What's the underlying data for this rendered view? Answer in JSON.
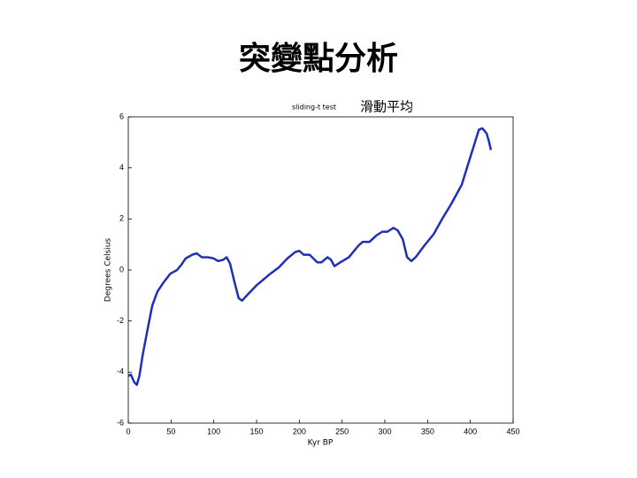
{
  "chart_data": {
    "type": "line",
    "title": "突變點分析",
    "subtitle": "sliding-t test",
    "annotation": "滑動平均",
    "x_label": "Kyr BP",
    "y_label": "Degrees Celsius",
    "xlim": [
      0,
      450
    ],
    "xticks": [
      0,
      50,
      100,
      150,
      200,
      250,
      300,
      350,
      400,
      450
    ],
    "ylim": [
      -6,
      6
    ],
    "yticks": [
      -6,
      -4,
      -2,
      0,
      2,
      4,
      6
    ],
    "grid": false,
    "series": [
      {
        "color": "#1f2fb8",
        "x": [
          0,
          3,
          7,
          10,
          13,
          17,
          23,
          28,
          34,
          41,
          49,
          57,
          62,
          67,
          75,
          80,
          86,
          93,
          100,
          105,
          111,
          115,
          119,
          124,
          129,
          133,
          140,
          150,
          166,
          176,
          186,
          195,
          200,
          205,
          212,
          221,
          226,
          233,
          237,
          241,
          248,
          258,
          269,
          274,
          282,
          290,
          297,
          303,
          310,
          315,
          321,
          326,
          331,
          336,
          346,
          357,
          367,
          377,
          386,
          390,
          396,
          403,
          410,
          414,
          419,
          422,
          424
        ],
        "values": [
          -4.15,
          -4.1,
          -4.4,
          -4.5,
          -4.15,
          -3.3,
          -2.25,
          -1.4,
          -0.85,
          -0.5,
          -0.15,
          0,
          0.2,
          0.45,
          0.6,
          0.65,
          0.5,
          0.5,
          0.45,
          0.35,
          0.4,
          0.5,
          0.25,
          -0.45,
          -1.1,
          -1.2,
          -0.95,
          -0.6,
          -0.15,
          0.1,
          0.45,
          0.7,
          0.75,
          0.6,
          0.6,
          0.3,
          0.3,
          0.5,
          0.4,
          0.15,
          0.3,
          0.5,
          0.95,
          1.1,
          1.1,
          1.35,
          1.5,
          1.5,
          1.65,
          1.55,
          1.2,
          0.5,
          0.35,
          0.5,
          0.95,
          1.4,
          2.0,
          2.55,
          3.1,
          3.35,
          4.0,
          4.75,
          5.5,
          5.55,
          5.35,
          5.0,
          4.7
        ]
      }
    ]
  }
}
